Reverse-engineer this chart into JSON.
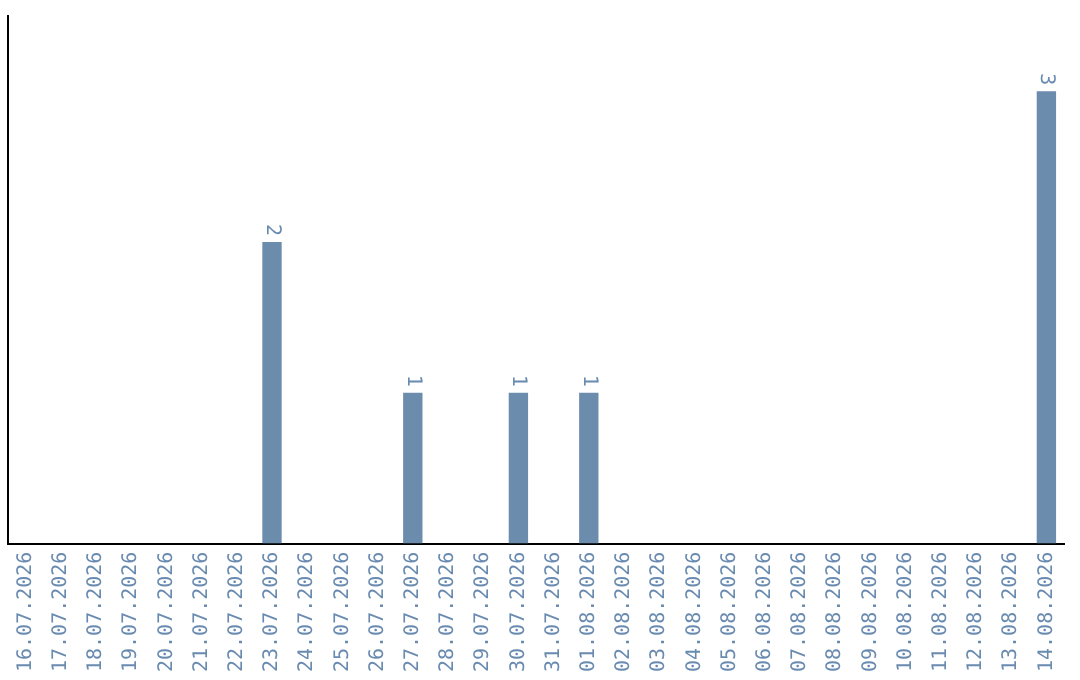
{
  "chart_data": {
    "type": "bar",
    "categories": [
      "16.07.2026",
      "17.07.2026",
      "18.07.2026",
      "19.07.2026",
      "20.07.2026",
      "21.07.2026",
      "22.07.2026",
      "23.07.2026",
      "24.07.2026",
      "25.07.2026",
      "26.07.2026",
      "27.07.2026",
      "28.07.2026",
      "29.07.2026",
      "30.07.2026",
      "31.07.2026",
      "01.08.2026",
      "02.08.2026",
      "03.08.2026",
      "04.08.2026",
      "05.08.2026",
      "06.08.2026",
      "07.08.2026",
      "08.08.2026",
      "09.08.2026",
      "10.08.2026",
      "11.08.2026",
      "12.08.2026",
      "13.08.2026",
      "14.08.2026"
    ],
    "values": [
      0,
      0,
      0,
      0,
      0,
      0,
      0,
      2,
      0,
      0,
      0,
      1,
      0,
      0,
      1,
      0,
      1,
      0,
      0,
      0,
      0,
      0,
      0,
      0,
      0,
      0,
      0,
      0,
      0,
      3
    ],
    "value_labels": [
      null,
      null,
      null,
      null,
      null,
      null,
      null,
      "2",
      null,
      null,
      null,
      "1",
      null,
      null,
      "1",
      null,
      "1",
      null,
      null,
      null,
      null,
      null,
      null,
      null,
      null,
      null,
      null,
      null,
      null,
      "3"
    ],
    "color": "#6b8cac",
    "grid": false,
    "legend": false,
    "tick_labels": "x"
  }
}
